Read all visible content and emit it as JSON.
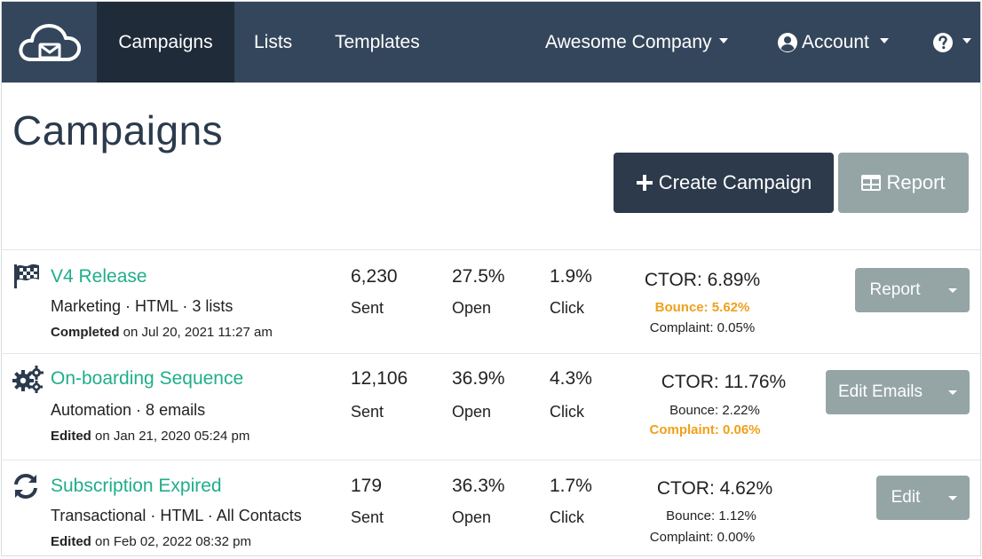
{
  "nav": {
    "logo_icon": "cloud-mail-icon",
    "items": [
      {
        "label": "Campaigns",
        "active": true
      },
      {
        "label": "Lists",
        "active": false
      },
      {
        "label": "Templates",
        "active": false
      }
    ],
    "company": "Awesome Company",
    "account": "Account",
    "account_icon": "user-circle-icon",
    "help_icon": "question-circle-icon"
  },
  "page": {
    "title": "Campaigns",
    "create_label": "Create Campaign",
    "report_label": "Report"
  },
  "campaigns": [
    {
      "icon": "checkered-flag-icon",
      "name": "V4 Release",
      "meta": "Marketing · HTML · 3 lists",
      "status_word": "Completed",
      "status_rest": " on Jul 20, 2021 11:27 am",
      "sent": "6,230",
      "sent_label": "Sent",
      "open": "27.5%",
      "open_label": "Open",
      "click": "1.9%",
      "click_label": "Click",
      "ctor": "CTOR: 6.89%",
      "bounce": "Bounce: 5.62%",
      "complaint": "Complaint: 0.05%",
      "bounce_warn": true,
      "complaint_warn": false,
      "action": "Report"
    },
    {
      "icon": "gears-icon",
      "name": "On-boarding Sequence",
      "meta": "Automation · 8 emails",
      "status_word": "Edited",
      "status_rest": " on Jan 21, 2020 05:24 pm",
      "sent": "12,106",
      "sent_label": "Sent",
      "open": "36.9%",
      "open_label": "Open",
      "click": "4.3%",
      "click_label": "Click",
      "ctor": "CTOR: 11.76%",
      "bounce": "Bounce: 2.22%",
      "complaint": "Complaint: 0.06%",
      "bounce_warn": false,
      "complaint_warn": true,
      "action": "Edit Emails"
    },
    {
      "icon": "refresh-icon",
      "name": "Subscription Expired",
      "meta": "Transactional · HTML · All Contacts",
      "status_word": "Edited",
      "status_rest": " on Feb 02, 2022 08:32 pm",
      "sent": "179",
      "sent_label": "Sent",
      "open": "36.3%",
      "open_label": "Open",
      "click": "1.7%",
      "click_label": "Click",
      "ctor": "CTOR: 4.62%",
      "bounce": "Bounce: 1.12%",
      "complaint": "Complaint: 0.00%",
      "bounce_warn": false,
      "complaint_warn": false,
      "action": "Edit"
    }
  ],
  "colors": {
    "nav_bg": "#34465c",
    "nav_active": "#1f2b39",
    "link_green": "#1fae8a",
    "warn_orange": "#f0a01a",
    "muted_button": "#95a5a6",
    "dark_button": "#2c3a4b"
  }
}
